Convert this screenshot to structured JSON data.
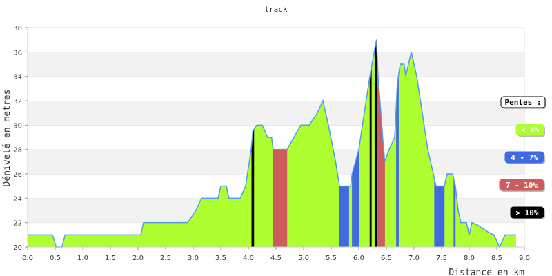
{
  "chart_data": {
    "type": "area",
    "title": "track",
    "xlabel": "Distance en km",
    "ylabel": "Dénivelé en metres",
    "xlim": [
      0,
      9
    ],
    "ylim": [
      20,
      38
    ],
    "x_ticks": [
      "0.0",
      "0.5",
      "1.0",
      "1.5",
      "2.0",
      "2.5",
      "3.0",
      "3.5",
      "4.0",
      "4.5",
      "5.0",
      "5.5",
      "6.0",
      "6.5",
      "7.0",
      "7.5",
      "8.0",
      "8.5",
      "9.0"
    ],
    "y_ticks": [
      "20",
      "22",
      "24",
      "26",
      "28",
      "30",
      "32",
      "34",
      "36",
      "38"
    ],
    "grid": "horizontal-bands",
    "legend_position": "right",
    "legend_title": "Pentes :",
    "legend": [
      {
        "label": "< 4%",
        "color": "#adff2f",
        "text_color": "#ffffff"
      },
      {
        "label": "4 - 7%",
        "color": "#4169e1",
        "text_color": "#ffffff"
      },
      {
        "label": "7 - 10%",
        "color": "#cd5c5c",
        "text_color": "#ffffff"
      },
      {
        "label": "> 10%",
        "color": "#000000",
        "text_color": "#ffffff"
      }
    ],
    "line_color": "#5599ee",
    "profile": [
      [
        0.0,
        21
      ],
      [
        0.45,
        21
      ],
      [
        0.52,
        20
      ],
      [
        0.62,
        20
      ],
      [
        0.68,
        21
      ],
      [
        2.05,
        21
      ],
      [
        2.1,
        22
      ],
      [
        2.9,
        22
      ],
      [
        3.05,
        23
      ],
      [
        3.15,
        24
      ],
      [
        3.45,
        24
      ],
      [
        3.5,
        25
      ],
      [
        3.6,
        25
      ],
      [
        3.65,
        24
      ],
      [
        3.85,
        24
      ],
      [
        3.95,
        25
      ],
      [
        4.05,
        28
      ],
      [
        4.08,
        29.5
      ],
      [
        4.15,
        30
      ],
      [
        4.25,
        30
      ],
      [
        4.35,
        29
      ],
      [
        4.42,
        29
      ],
      [
        4.45,
        28
      ],
      [
        4.7,
        28
      ],
      [
        4.95,
        30
      ],
      [
        5.1,
        30
      ],
      [
        5.25,
        31
      ],
      [
        5.35,
        32
      ],
      [
        5.45,
        30
      ],
      [
        5.58,
        27
      ],
      [
        5.65,
        25
      ],
      [
        5.85,
        25
      ],
      [
        5.88,
        26
      ],
      [
        6.0,
        28
      ],
      [
        6.1,
        31
      ],
      [
        6.2,
        34
      ],
      [
        6.28,
        36
      ],
      [
        6.32,
        37
      ],
      [
        6.35,
        34
      ],
      [
        6.45,
        28
      ],
      [
        6.47,
        27
      ],
      [
        6.55,
        28
      ],
      [
        6.65,
        29
      ],
      [
        6.7,
        33.5
      ],
      [
        6.75,
        35
      ],
      [
        6.82,
        35
      ],
      [
        6.85,
        34
      ],
      [
        6.95,
        36
      ],
      [
        7.05,
        34
      ],
      [
        7.15,
        31
      ],
      [
        7.25,
        28
      ],
      [
        7.35,
        26
      ],
      [
        7.4,
        25
      ],
      [
        7.55,
        25
      ],
      [
        7.6,
        26
      ],
      [
        7.7,
        26
      ],
      [
        7.75,
        25
      ],
      [
        7.8,
        23
      ],
      [
        7.85,
        22
      ],
      [
        7.95,
        22
      ],
      [
        8.0,
        21
      ],
      [
        8.05,
        22
      ],
      [
        8.15,
        21.8
      ],
      [
        8.35,
        21.2
      ],
      [
        8.45,
        21
      ],
      [
        8.5,
        20.5
      ],
      [
        8.55,
        20
      ],
      [
        8.65,
        21
      ],
      [
        8.85,
        21
      ]
    ],
    "slope_segments": [
      {
        "class": "> 10%",
        "x_start": 4.06,
        "x_end": 4.1
      },
      {
        "class": "7 - 10%",
        "x_start": 4.45,
        "x_end": 4.7
      },
      {
        "class": "4 - 7%",
        "x_start": 5.65,
        "x_end": 5.82
      },
      {
        "class": "4 - 7%",
        "x_start": 5.88,
        "x_end": 6.0
      },
      {
        "class": "> 10%",
        "x_start": 6.2,
        "x_end": 6.23
      },
      {
        "class": "> 10%",
        "x_start": 6.29,
        "x_end": 6.33
      },
      {
        "class": "7 - 10%",
        "x_start": 6.34,
        "x_end": 6.47
      },
      {
        "class": "4 - 7%",
        "x_start": 6.68,
        "x_end": 6.72
      },
      {
        "class": "4 - 7%",
        "x_start": 7.37,
        "x_end": 7.55
      },
      {
        "class": "4 - 7%",
        "x_start": 7.72,
        "x_end": 7.75
      }
    ]
  }
}
